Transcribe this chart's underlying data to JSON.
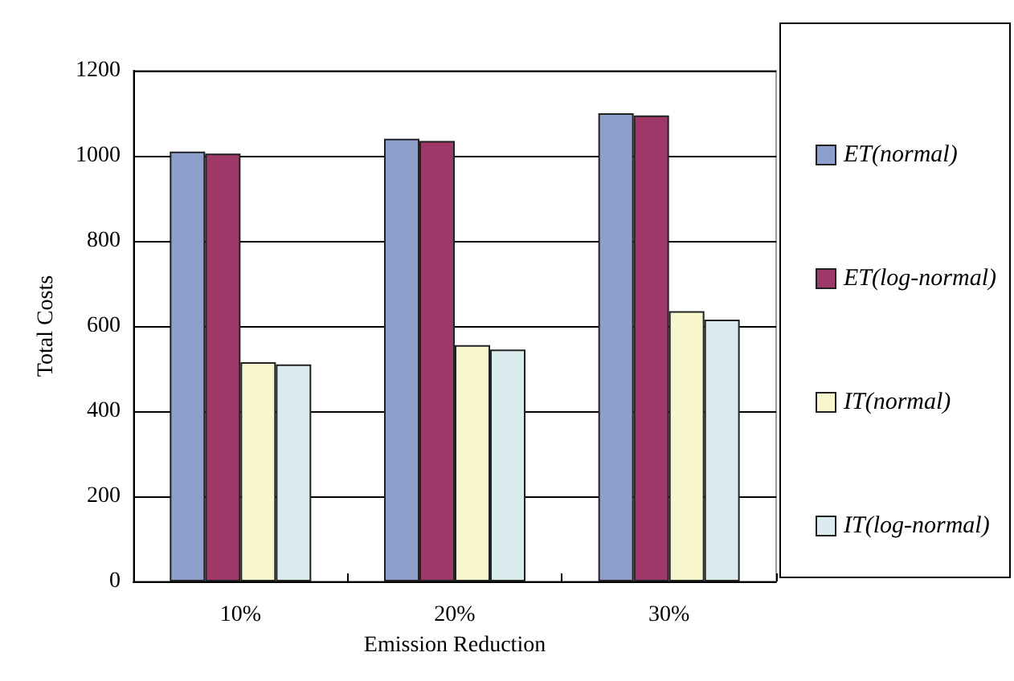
{
  "chart_data": {
    "type": "bar",
    "xlabel": "Emission Reduction",
    "ylabel": "Total Costs",
    "categories": [
      "10%",
      "20%",
      "30%"
    ],
    "series": [
      {
        "name": "ET(normal)",
        "color": "#8e9fcc",
        "values": [
          1010,
          1040,
          1100
        ]
      },
      {
        "name": "ET(log-normal)",
        "color": "#9e3868",
        "values": [
          1005,
          1035,
          1095
        ]
      },
      {
        "name": "IT(normal)",
        "color": "#f8f6cc",
        "values": [
          515,
          555,
          635
        ]
      },
      {
        "name": "IT(log-normal)",
        "color": "#daebee",
        "values": [
          510,
          545,
          615
        ]
      }
    ],
    "ylim": [
      0,
      1200
    ],
    "yticks": [
      0,
      200,
      400,
      600,
      800,
      1000,
      1200
    ],
    "grid": "y",
    "legend": "right"
  }
}
